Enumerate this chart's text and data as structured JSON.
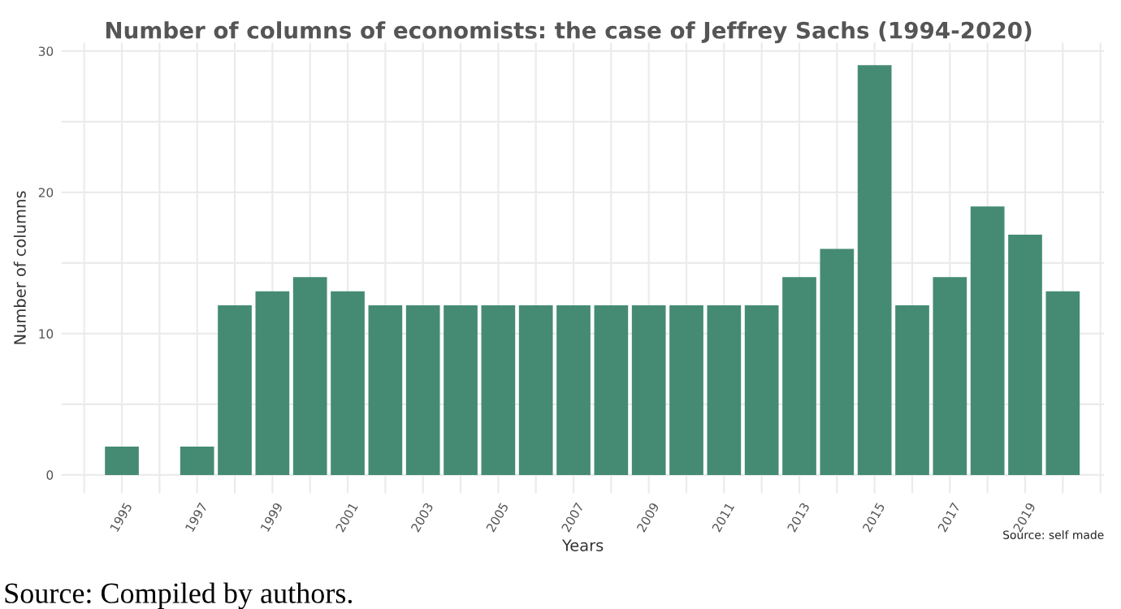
{
  "chart_data": {
    "type": "bar",
    "title": "Number of columns of economists: the case of Jeffrey Sachs (1994-2020)",
    "xlabel": "Years",
    "ylabel": "Number of columns",
    "x": [
      1995,
      1997,
      1998,
      1999,
      2000,
      2001,
      2002,
      2003,
      2004,
      2005,
      2006,
      2007,
      2008,
      2009,
      2010,
      2011,
      2012,
      2013,
      2014,
      2015,
      2016,
      2017,
      2018,
      2019,
      2020
    ],
    "values": [
      2,
      2,
      12,
      13,
      14,
      13,
      12,
      12,
      12,
      12,
      12,
      12,
      12,
      12,
      12,
      12,
      12,
      14,
      16,
      29,
      12,
      14,
      19,
      17,
      13
    ],
    "color": "#458b73",
    "xlim": [
      1993.4,
      2021.1
    ],
    "xticks": [
      {
        "value": 1994,
        "label": null
      },
      1995,
      {
        "value": 1996,
        "label": null
      },
      1997,
      {
        "value": 1998,
        "label": null
      },
      1999,
      {
        "value": 2000,
        "label": null
      },
      2001,
      {
        "value": 2002,
        "label": null
      },
      2003,
      {
        "value": 2004,
        "label": null
      },
      2005,
      {
        "value": 2006,
        "label": null
      },
      2007,
      {
        "value": 2008,
        "label": null
      },
      2009,
      {
        "value": 2010,
        "label": null
      },
      2011,
      {
        "value": 2012,
        "label": null
      },
      2013,
      {
        "value": 2014,
        "label": null
      },
      2015,
      {
        "value": 2016,
        "label": null
      },
      2017,
      {
        "value": 2018,
        "label": null
      },
      2019,
      {
        "value": 2020,
        "label": null
      },
      {
        "value": 2021,
        "label": null
      }
    ],
    "ylim": [
      -1.3,
      30.6
    ],
    "yticks": [
      0,
      {
        "value": 5,
        "label": null
      },
      10,
      {
        "value": 15,
        "label": null
      },
      20,
      {
        "value": 25,
        "label": null
      },
      30
    ],
    "grid": true,
    "annotations": [
      "Source: self made",
      "Source: Compiled by authors."
    ]
  }
}
